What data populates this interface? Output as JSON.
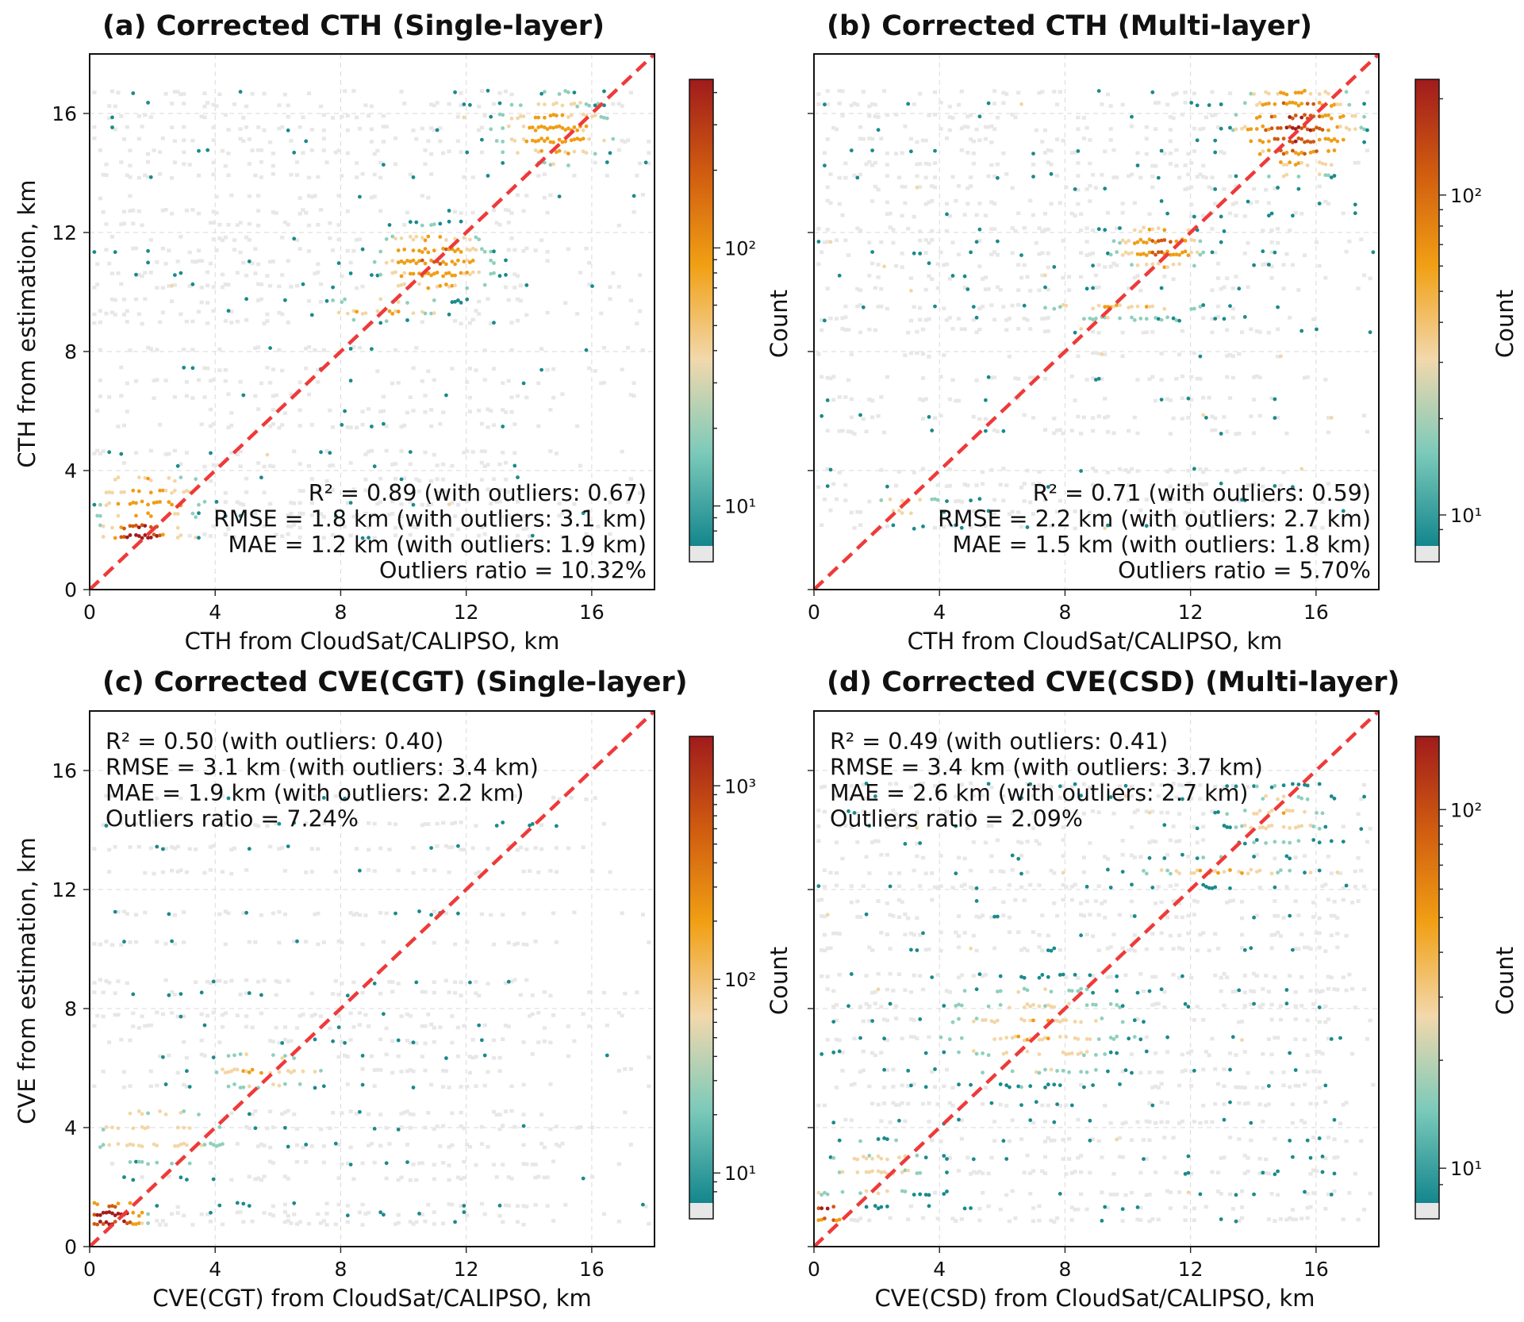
{
  "figure": {
    "font": "DejaVu Sans",
    "background": "#ffffff"
  },
  "colors": {
    "outlier": "#e7e7e7",
    "teal": "#1a8a8c",
    "lightgreen": "#8fcfbd",
    "beige": "#f3d6a6",
    "orange": "#ef9e16",
    "darkorange": "#cf5a10",
    "darkred": "#a41c1b",
    "diagonal": "#ee3a3a"
  },
  "colorbar_stops": [
    "#e7e7e7",
    "#13868d",
    "#7ccaba",
    "#f2d8ac",
    "#f1a014",
    "#d05c10",
    "#a01b1c"
  ],
  "colorbar_label": "Count",
  "chart_data": [
    {
      "type": "scatter",
      "id": "a",
      "title": "(a) Corrected CTH (Single-layer)",
      "xlabel": "CTH from CloudSat/CALIPSO, km",
      "ylabel": "CTH from estimation, km",
      "xlim": [
        0,
        18
      ],
      "ylim": [
        0,
        18
      ],
      "xticks": [
        0,
        4,
        8,
        12,
        16
      ],
      "yticks": [
        0,
        4,
        8,
        12,
        16
      ],
      "show_yticklabels": true,
      "reference_line": {
        "from": [
          0,
          0
        ],
        "to": [
          18,
          18
        ]
      },
      "stats": [
        "R² = 0.89 (with outliers: 0.67)",
        "RMSE = 1.8 km (with outliers: 3.1 km)",
        "MAE = 1.2 km (with outliers: 1.9 km)",
        "Outliers ratio = 10.32%"
      ],
      "stats_position": "bottom-right",
      "colorbar": {
        "label": "Count",
        "scale": "log",
        "ticks": [
          10,
          100
        ],
        "tick_labels": [
          "10¹",
          "10²"
        ],
        "range": [
          7,
          450
        ]
      },
      "density": {
        "rows": [
          1.8,
          2.1,
          2.5,
          2.9,
          3.3,
          3.7,
          4.2,
          4.6,
          5.5,
          6.0,
          6.5,
          7.0,
          7.4,
          8.1,
          9.0,
          9.3,
          9.7,
          10.2,
          10.6,
          11.0,
          11.4,
          11.8,
          12.3,
          12.7,
          13.2,
          13.9,
          14.3,
          14.7,
          15.1,
          15.5,
          15.9,
          16.3,
          16.7
        ],
        "clusters": [
          {
            "x": 1.6,
            "y": 1.8,
            "sx": 0.8,
            "sy": 0.45,
            "peak": 4.3,
            "rate": 0.95
          },
          {
            "x": 1.9,
            "y": 3.0,
            "sx": 1.3,
            "sy": 0.8,
            "peak": 2.4,
            "rate": 0.55
          },
          {
            "x": 9.2,
            "y": 9.4,
            "sx": 1.6,
            "sy": 0.3,
            "peak": 2.1,
            "rate": 0.65
          },
          {
            "x": 11.0,
            "y": 11.0,
            "sx": 1.3,
            "sy": 0.9,
            "peak": 2.7,
            "rate": 0.9
          },
          {
            "x": 14.8,
            "y": 15.4,
            "sx": 1.4,
            "sy": 0.9,
            "peak": 2.4,
            "rate": 0.85
          }
        ],
        "background": {
          "rate": 0.2,
          "xmax": 14,
          "teal": 0.09,
          "beige": 0.01
        }
      }
    },
    {
      "type": "scatter",
      "id": "b",
      "title": "(b) Corrected CTH (Multi-layer)",
      "xlabel": "CTH from CloudSat/CALIPSO, km",
      "ylabel": "",
      "xlim": [
        0,
        18
      ],
      "ylim": [
        0,
        18
      ],
      "xticks": [
        0,
        4,
        8,
        12,
        16
      ],
      "yticks": [
        0,
        4,
        8,
        12,
        16
      ],
      "show_yticklabels": false,
      "reference_line": {
        "from": [
          0,
          0
        ],
        "to": [
          18,
          18
        ]
      },
      "stats": [
        "R² = 0.71 (with outliers: 0.59)",
        "RMSE = 2.2 km (with outliers: 2.7 km)",
        "MAE = 1.5 km (with outliers: 1.8 km)",
        "Outliers ratio = 5.70%"
      ],
      "stats_position": "bottom-right",
      "colorbar": {
        "label": "Count",
        "scale": "log",
        "ticks": [
          10,
          100
        ],
        "tick_labels": [
          "10¹",
          "10²"
        ],
        "range": [
          8,
          230
        ]
      },
      "density": {
        "rows": [
          2.1,
          2.6,
          3.0,
          3.5,
          4.0,
          5.3,
          5.8,
          6.4,
          7.1,
          7.9,
          8.7,
          9.1,
          9.5,
          10.1,
          10.5,
          10.9,
          11.3,
          11.7,
          12.1,
          12.6,
          13.0,
          13.5,
          13.9,
          14.3,
          14.7,
          15.1,
          15.5,
          15.9,
          16.3,
          16.7
        ],
        "clusters": [
          {
            "x": 3.0,
            "y": 2.8,
            "sx": 1.0,
            "sy": 0.6,
            "peak": 1.5,
            "rate": 0.45
          },
          {
            "x": 9.8,
            "y": 9.4,
            "sx": 2.2,
            "sy": 0.3,
            "peak": 1.8,
            "rate": 0.6
          },
          {
            "x": 11.0,
            "y": 11.5,
            "sx": 1.0,
            "sy": 0.6,
            "peak": 2.9,
            "rate": 0.9
          },
          {
            "x": 15.4,
            "y": 15.5,
            "sx": 1.3,
            "sy": 1.1,
            "peak": 3.6,
            "rate": 0.95
          }
        ],
        "background": {
          "rate": 0.22,
          "xmax": 15,
          "teal": 0.1,
          "beige": 0.01
        }
      }
    },
    {
      "type": "scatter",
      "id": "c",
      "title": "(c) Corrected CVE(CGT) (Single-layer)",
      "xlabel": "CVE(CGT) from CloudSat/CALIPSO, km",
      "ylabel": "CVE from estimation, km",
      "xlim": [
        0,
        18
      ],
      "ylim": [
        0,
        18
      ],
      "xticks": [
        0,
        4,
        8,
        12,
        16
      ],
      "yticks": [
        0,
        4,
        8,
        12,
        16
      ],
      "show_yticklabels": true,
      "reference_line": {
        "from": [
          0,
          0
        ],
        "to": [
          18,
          18
        ]
      },
      "stats": [
        "R² = 0.50 (with outliers: 0.40)",
        "RMSE = 3.1 km (with outliers: 3.4 km)",
        "MAE = 1.9 km (with outliers: 2.2 km)",
        "Outliers ratio = 7.24%"
      ],
      "stats_position": "top-left",
      "colorbar": {
        "label": "Count",
        "scale": "log",
        "ticks": [
          10,
          100,
          1000
        ],
        "tick_labels": [
          "10¹",
          "10²",
          "10³"
        ],
        "range": [
          7,
          1800
        ]
      },
      "density": {
        "rows": [
          0.8,
          1.1,
          1.4,
          2.3,
          2.8,
          3.4,
          4.0,
          4.5,
          5.4,
          5.9,
          6.4,
          6.9,
          7.4,
          7.8,
          8.5,
          8.9,
          10.2,
          11.2,
          12.6,
          13.4,
          14.2,
          15.1
        ],
        "clusters": [
          {
            "x": 0.7,
            "y": 1.0,
            "sx": 0.7,
            "sy": 0.45,
            "peak": 4.6,
            "rate": 0.95
          },
          {
            "x": 2.2,
            "y": 3.8,
            "sx": 2.0,
            "sy": 0.9,
            "peak": 1.8,
            "rate": 0.5
          },
          {
            "x": 5.5,
            "y": 5.9,
            "sx": 1.8,
            "sy": 0.6,
            "peak": 1.7,
            "rate": 0.45
          }
        ],
        "background": {
          "rate": 0.22,
          "xmax": 15,
          "teal": 0.11,
          "beige": 0.0
        }
      }
    },
    {
      "type": "scatter",
      "id": "d",
      "title": "(d) Corrected CVE(CSD) (Multi-layer)",
      "xlabel": "CVE(CSD) from CloudSat/CALIPSO, km",
      "ylabel": "",
      "xlim": [
        0,
        18
      ],
      "ylim": [
        0,
        18
      ],
      "xticks": [
        0,
        4,
        8,
        12,
        16
      ],
      "yticks": [
        0,
        4,
        8,
        12,
        16
      ],
      "show_yticklabels": false,
      "reference_line": {
        "from": [
          0,
          0
        ],
        "to": [
          18,
          18
        ]
      },
      "stats": [
        "R² = 0.49 (with outliers: 0.41)",
        "RMSE = 3.4 km (with outliers: 3.7 km)",
        "MAE = 2.6 km (with outliers: 2.7 km)",
        "Outliers ratio = 2.09%"
      ],
      "stats_position": "top-left",
      "colorbar": {
        "label": "Count",
        "scale": "log",
        "ticks": [
          10,
          100
        ],
        "tick_labels": [
          "10¹",
          "10²"
        ],
        "range": [
          8,
          160
        ]
      },
      "density": {
        "rows": [
          0.9,
          1.3,
          1.8,
          2.5,
          3.0,
          3.6,
          4.2,
          4.8,
          5.4,
          5.9,
          6.5,
          7.0,
          7.6,
          8.1,
          8.6,
          9.1,
          10.0,
          10.5,
          11.1,
          11.6,
          12.1,
          12.6,
          13.1,
          13.6,
          14.1,
          14.6,
          15.1,
          15.5
        ],
        "clusters": [
          {
            "x": 0.4,
            "y": 1.2,
            "sx": 0.45,
            "sy": 0.4,
            "peak": 3.9,
            "rate": 0.95
          },
          {
            "x": 2.0,
            "y": 2.5,
            "sx": 1.5,
            "sy": 1.0,
            "peak": 1.6,
            "rate": 0.55
          },
          {
            "x": 7.0,
            "y": 7.2,
            "sx": 2.6,
            "sy": 1.5,
            "peak": 1.7,
            "rate": 0.55
          },
          {
            "x": 13.0,
            "y": 12.6,
            "sx": 2.0,
            "sy": 0.4,
            "peak": 1.8,
            "rate": 0.6
          },
          {
            "x": 14.8,
            "y": 14.5,
            "sx": 1.6,
            "sy": 0.9,
            "peak": 1.6,
            "rate": 0.55
          }
        ],
        "background": {
          "rate": 0.24,
          "xmax": 17,
          "teal": 0.13,
          "beige": 0.02
        }
      }
    }
  ]
}
